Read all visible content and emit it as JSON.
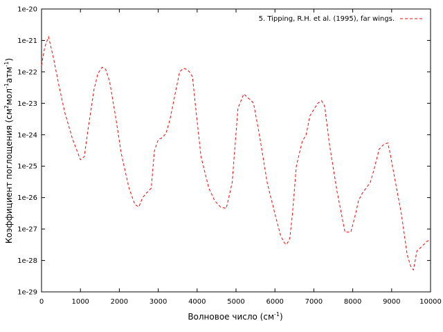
{
  "chart_data": {
    "type": "line",
    "xlabel": "Волновое число (см",
    "xlabel_sup": "-1",
    "xlabel_tail": ")",
    "ylabel_parts": {
      "a": "Коэффициент поглощения (см",
      "a_sup": "2",
      "b": "мол",
      "b_sup": "-1",
      "c": "атм",
      "c_sup": "-1",
      "d": ")"
    },
    "xlim": [
      0,
      10000
    ],
    "ylim_log10": [
      -29,
      -20
    ],
    "y_scale": "log",
    "x_ticks": [
      {
        "v": 0,
        "label": "0"
      },
      {
        "v": 1000,
        "label": "1000"
      },
      {
        "v": 2000,
        "label": "2000"
      },
      {
        "v": 3000,
        "label": "3000"
      },
      {
        "v": 4000,
        "label": "4000"
      },
      {
        "v": 5000,
        "label": "5000"
      },
      {
        "v": 6000,
        "label": "6000"
      },
      {
        "v": 7000,
        "label": "7000"
      },
      {
        "v": 8000,
        "label": "8000"
      },
      {
        "v": 9000,
        "label": "9000"
      },
      {
        "v": 10000,
        "label": "10000"
      }
    ],
    "y_ticks": [
      {
        "e": -20,
        "label": "1e-20"
      },
      {
        "e": -21,
        "label": "1e-21"
      },
      {
        "e": -22,
        "label": "1e-22"
      },
      {
        "e": -23,
        "label": "1e-23"
      },
      {
        "e": -24,
        "label": "1e-24"
      },
      {
        "e": -25,
        "label": "1e-25"
      },
      {
        "e": -26,
        "label": "1e-26"
      },
      {
        "e": -27,
        "label": "1e-27"
      },
      {
        "e": -28,
        "label": "1e-28"
      },
      {
        "e": -29,
        "label": "1e-29"
      }
    ],
    "legend_position": "top-right",
    "series": [
      {
        "name": "5. Tipping, R.H. et al. (1995), far wings.",
        "color": "#ff0000",
        "style": "dashed",
        "x": [
          0,
          80,
          180,
          300,
          450,
          600,
          800,
          1000,
          1100,
          1200,
          1350,
          1450,
          1560,
          1650,
          1750,
          1900,
          2050,
          2250,
          2400,
          2500,
          2600,
          2700,
          2820,
          2900,
          3000,
          3100,
          3200,
          3300,
          3450,
          3550,
          3650,
          3730,
          3800,
          3880,
          3950,
          4100,
          4300,
          4450,
          4600,
          4750,
          4900,
          5050,
          5200,
          5300,
          5370,
          5450,
          5600,
          5800,
          6000,
          6150,
          6250,
          6300,
          6380,
          6450,
          6550,
          6700,
          6800,
          6900,
          7100,
          7200,
          7280,
          7400,
          7600,
          7800,
          7950,
          8050,
          8150,
          8250,
          8450,
          8550,
          8680,
          8800,
          8900,
          8950,
          9100,
          9250,
          9400,
          9500,
          9560,
          9650,
          9800,
          9900,
          9980
        ],
        "y": [
          1.6e-22,
          6e-22,
          1.3e-21,
          3e-22,
          3.5e-23,
          5e-24,
          7e-25,
          1.6e-25,
          2e-25,
          1.6e-24,
          2.8e-23,
          9e-23,
          1.4e-22,
          1.2e-22,
          5e-23,
          4e-24,
          2.5e-25,
          2e-26,
          6e-27,
          5e-27,
          1e-26,
          1.4e-26,
          2e-26,
          3e-25,
          7e-25,
          8e-25,
          1.1e-24,
          3e-24,
          2.5e-23,
          1e-22,
          1.3e-22,
          1.2e-22,
          1e-22,
          7e-23,
          1e-23,
          2e-25,
          2e-26,
          8e-27,
          5e-27,
          4.5e-27,
          3e-26,
          7e-24,
          2e-23,
          1.5e-23,
          1.3e-23,
          1e-23,
          1e-24,
          3e-26,
          3e-27,
          6e-28,
          3.5e-28,
          3.2e-28,
          5e-28,
          3e-27,
          1e-25,
          6e-25,
          1e-24,
          4e-24,
          1e-23,
          1.2e-23,
          8e-24,
          5e-25,
          1.5e-26,
          8e-28,
          8e-28,
          2.3e-27,
          8e-27,
          1.4e-26,
          3e-26,
          8e-26,
          3.5e-25,
          5e-25,
          5.5e-25,
          3e-25,
          3e-26,
          3e-27,
          1.5e-28,
          6e-29,
          5e-29,
          2e-28,
          3e-28,
          4e-28,
          4.5e-28
        ]
      }
    ]
  }
}
